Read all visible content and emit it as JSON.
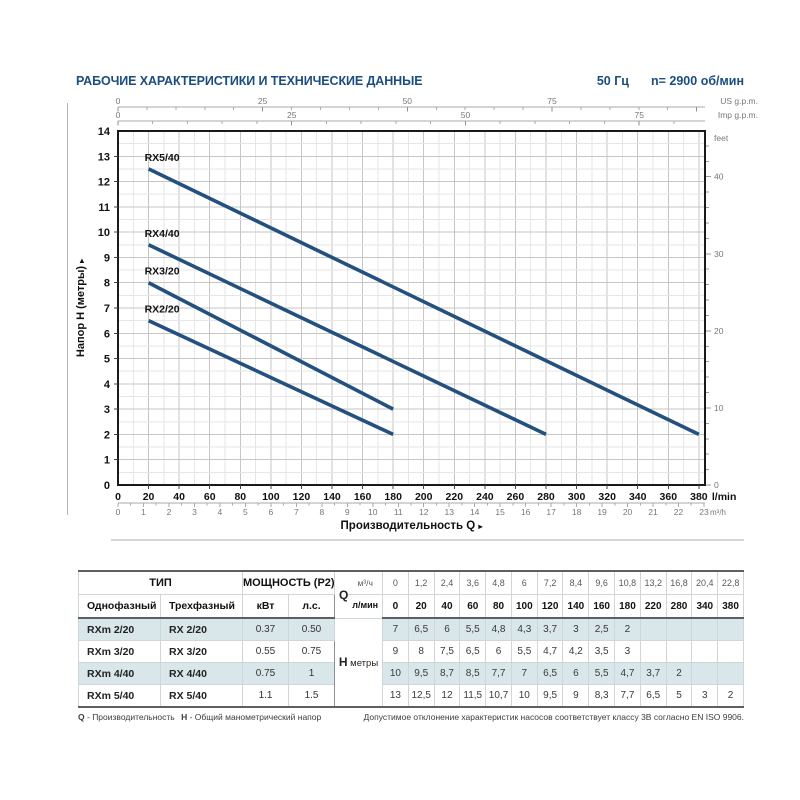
{
  "header": {
    "title": "РАБОЧИЕ ХАРАКТЕРИСТИКИ И ТЕХНИЧЕСКИЕ ДАННЫЕ",
    "frequency": "50 Гц",
    "speed": "n= 2900 об/мин"
  },
  "chart_data": {
    "type": "line",
    "x_axis": {
      "label": "Производительность Q",
      "arrow": "▸",
      "unit": "l/min",
      "ticks_lmin": [
        0,
        20,
        40,
        60,
        80,
        100,
        120,
        140,
        160,
        180,
        200,
        220,
        240,
        260,
        280,
        300,
        320,
        340,
        360,
        380
      ],
      "secondary_unit": "m³/h",
      "ticks_m3h": [
        0,
        1,
        2,
        3,
        4,
        5,
        6,
        7,
        8,
        9,
        10,
        11,
        12,
        13,
        14,
        15,
        16,
        17,
        18,
        19,
        20,
        21,
        22,
        23
      ],
      "range_lmin": [
        0,
        384
      ]
    },
    "y_axis": {
      "label": "Напор H (метры)",
      "arrow": "▸",
      "ticks_m": [
        0,
        1,
        2,
        3,
        4,
        5,
        6,
        7,
        8,
        9,
        10,
        11,
        12,
        13,
        14
      ],
      "range_m": [
        0,
        14
      ],
      "right_unit": "feet",
      "ticks_feet": [
        0,
        10,
        20,
        30,
        40
      ]
    },
    "top_axes": [
      {
        "unit": "US g.p.m.",
        "ticks": [
          0,
          25,
          50,
          75
        ]
      },
      {
        "unit": "Imp g.p.m.",
        "ticks": [
          0,
          25,
          50,
          75
        ]
      }
    ],
    "grid": "major+minor",
    "series": [
      {
        "name": "RX5/40",
        "q_lmin": [
          20,
          40,
          60,
          80,
          100,
          120,
          140,
          160,
          180,
          220,
          280,
          340,
          380
        ],
        "h_m": [
          12.5,
          12,
          11.5,
          10.7,
          10,
          9.5,
          9,
          8.3,
          7.7,
          6.5,
          5,
          3,
          2
        ]
      },
      {
        "name": "RX4/40",
        "q_lmin": [
          20,
          40,
          60,
          80,
          100,
          120,
          140,
          160,
          180,
          220,
          280
        ],
        "h_m": [
          9.5,
          8.7,
          8.5,
          7.7,
          7,
          6.5,
          6,
          5.5,
          4.7,
          3.7,
          2
        ]
      },
      {
        "name": "RX3/20",
        "q_lmin": [
          20,
          40,
          60,
          80,
          100,
          120,
          140,
          160,
          180
        ],
        "h_m": [
          8,
          7.5,
          6.5,
          6,
          5.5,
          4.7,
          4.2,
          3.5,
          3
        ]
      },
      {
        "name": "RX2/20",
        "q_lmin": [
          20,
          40,
          60,
          80,
          100,
          120,
          140,
          160,
          180
        ],
        "h_m": [
          6.5,
          6,
          5.5,
          4.8,
          4.3,
          3.7,
          3,
          2.5,
          2
        ]
      }
    ],
    "colors": {
      "curve": "#24507e",
      "title_blue": "#1b4d80",
      "row_shade": "#d9e6ea",
      "grid_major": "#c6c6c6",
      "grid_minor": "#e6e6e6",
      "frame": "#1a1a1a",
      "axis_gray": "#aaaaaa",
      "text_gray": "#777777"
    }
  },
  "table": {
    "type_header": "ТИП",
    "power_header": "МОЩНОСТЬ (P2)",
    "col_headers": [
      "Однофазный",
      "Трехфазный",
      "кВт",
      "л.с."
    ],
    "q_label": "Q",
    "q_units": [
      "м³/ч",
      "л/мин"
    ],
    "q_m3h": [
      "0",
      "1,2",
      "2,4",
      "3,6",
      "4,8",
      "6",
      "7,2",
      "8,4",
      "9,6",
      "10,8",
      "13,2",
      "16,8",
      "20,4",
      "22,8"
    ],
    "q_lmin": [
      "0",
      "20",
      "40",
      "60",
      "80",
      "100",
      "120",
      "140",
      "160",
      "180",
      "220",
      "280",
      "340",
      "380"
    ],
    "h_label": "H",
    "h_unit": "метры",
    "rows": [
      {
        "single": "RXm 2/20",
        "three": "RX 2/20",
        "kw": "0.37",
        "hp": "0.50",
        "shaded": true,
        "h": [
          "7",
          "6,5",
          "6",
          "5,5",
          "4,8",
          "4,3",
          "3,7",
          "3",
          "2,5",
          "2",
          "",
          "",
          "",
          ""
        ]
      },
      {
        "single": "RXm 3/20",
        "three": "RX 3/20",
        "kw": "0.55",
        "hp": "0.75",
        "shaded": false,
        "h": [
          "9",
          "8",
          "7,5",
          "6,5",
          "6",
          "5,5",
          "4,7",
          "4,2",
          "3,5",
          "3",
          "",
          "",
          "",
          ""
        ]
      },
      {
        "single": "RXm 4/40",
        "three": "RX 4/40",
        "kw": "0.75",
        "hp": "1",
        "shaded": true,
        "h": [
          "10",
          "9,5",
          "8,7",
          "8,5",
          "7,7",
          "7",
          "6,5",
          "6",
          "5,5",
          "4,7",
          "3,7",
          "2",
          "",
          ""
        ]
      },
      {
        "single": "RXm 5/40",
        "three": "RX 5/40",
        "kw": "1.1",
        "hp": "1.5",
        "shaded": false,
        "h": [
          "13",
          "12,5",
          "12",
          "11,5",
          "10,7",
          "10",
          "9,5",
          "9",
          "8,3",
          "7,7",
          "6,5",
          "5",
          "3",
          "2"
        ]
      }
    ]
  },
  "footer": {
    "q_label": "Q",
    "q_text": "- Производительность",
    "h_label": "H",
    "h_text": "- Общий манометрический напор",
    "note": "Допустимое отклонение характеристик насосов соответствует классу 3В согласно EN ISO 9906."
  }
}
